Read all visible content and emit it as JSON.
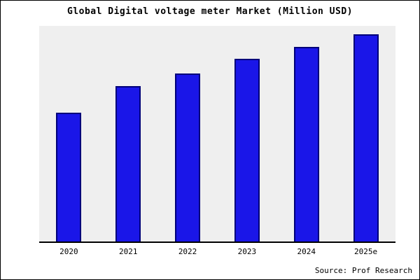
{
  "title": "Global Digital voltage meter Market (Million USD)",
  "source": "Source: Prof Research",
  "colors": {
    "bar_fill": "#1a16e8",
    "bar_edge": "#00007a",
    "plot_background": "#efefef",
    "axis": "#000000"
  },
  "chart_data": {
    "type": "bar",
    "categories": [
      "2020",
      "2021",
      "2022",
      "2023",
      "2024",
      "2025e"
    ],
    "values": [
      62,
      75,
      81,
      88,
      94,
      100
    ],
    "title": "Global Digital voltage meter Market (Million USD)",
    "xlabel": "",
    "ylabel": "",
    "ylim": [
      0,
      104
    ],
    "grid": false,
    "legend_position": "none",
    "annotation": "Source: Prof Research"
  }
}
